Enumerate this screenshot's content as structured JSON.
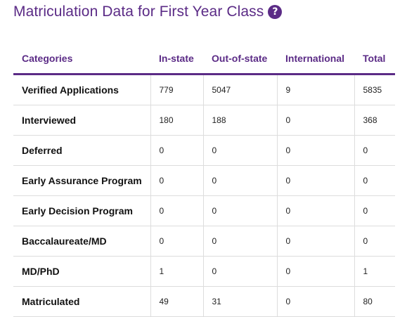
{
  "header": {
    "title": "Matriculation Data for First Year Class",
    "help_icon": "question-circle-icon"
  },
  "table": {
    "columns": [
      "Categories",
      "In-state",
      "Out-of-state",
      "International",
      "Total"
    ],
    "rows": [
      {
        "category": "Verified Applications",
        "in_state": "779",
        "out_of_state": "5047",
        "international": "9",
        "total": "5835"
      },
      {
        "category": "Interviewed",
        "in_state": "180",
        "out_of_state": "188",
        "international": "0",
        "total": "368"
      },
      {
        "category": "Deferred",
        "in_state": "0",
        "out_of_state": "0",
        "international": "0",
        "total": "0"
      },
      {
        "category": "Early Assurance Program",
        "in_state": "0",
        "out_of_state": "0",
        "international": "0",
        "total": "0"
      },
      {
        "category": "Early Decision Program",
        "in_state": "0",
        "out_of_state": "0",
        "international": "0",
        "total": "0"
      },
      {
        "category": "Baccalaureate/MD",
        "in_state": "0",
        "out_of_state": "0",
        "international": "0",
        "total": "0"
      },
      {
        "category": "MD/PhD",
        "in_state": "1",
        "out_of_state": "0",
        "international": "0",
        "total": "1"
      },
      {
        "category": "Matriculated",
        "in_state": "49",
        "out_of_state": "31",
        "international": "0",
        "total": "80"
      }
    ]
  },
  "colors": {
    "accent": "#5b2b86",
    "divider": "#dddddd"
  }
}
